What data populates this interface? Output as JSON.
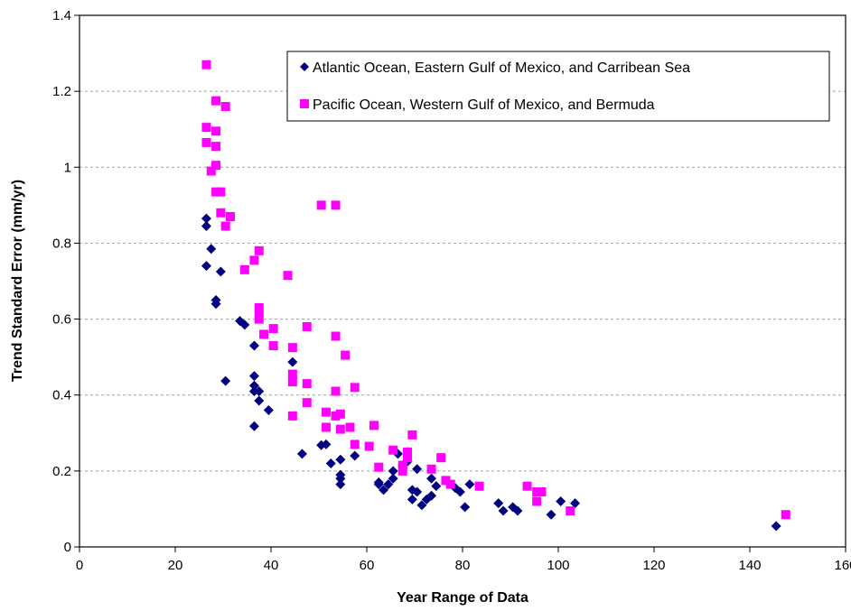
{
  "chart_data": {
    "type": "scatter",
    "title": "",
    "xlabel": "Year Range of Data",
    "ylabel": "Trend Standard Error (mm/yr)",
    "xlim": [
      0,
      160
    ],
    "ylim": [
      0,
      1.4
    ],
    "xticks": [
      "0",
      "20",
      "40",
      "60",
      "80",
      "100",
      "120",
      "140",
      "160"
    ],
    "yticks": [
      "0",
      "0.2",
      "0.4",
      "0.6",
      "0.8",
      "1",
      "1.2",
      "1.4"
    ],
    "grid": "horizontal-dashed",
    "legend_position": "top-right",
    "series": [
      {
        "name": "Atlantic Ocean, Eastern Gulf of Mexico, and Carribean Sea",
        "color": "#000080",
        "marker": "diamond",
        "points": [
          [
            26.5,
            0.865
          ],
          [
            26.5,
            0.845
          ],
          [
            26.5,
            0.74
          ],
          [
            27.5,
            0.785
          ],
          [
            28.5,
            0.65
          ],
          [
            28.5,
            0.64
          ],
          [
            29.5,
            0.725
          ],
          [
            30.5,
            0.437
          ],
          [
            33.5,
            0.595
          ],
          [
            34.5,
            0.585
          ],
          [
            36.5,
            0.53
          ],
          [
            36.5,
            0.45
          ],
          [
            36.5,
            0.425
          ],
          [
            36.5,
            0.41
          ],
          [
            36.5,
            0.318
          ],
          [
            37.5,
            0.41
          ],
          [
            37.5,
            0.385
          ],
          [
            39.5,
            0.36
          ],
          [
            44.5,
            0.487
          ],
          [
            46.5,
            0.245
          ],
          [
            50.5,
            0.268
          ],
          [
            51.5,
            0.27
          ],
          [
            52.5,
            0.22
          ],
          [
            54.5,
            0.23
          ],
          [
            54.5,
            0.19
          ],
          [
            54.5,
            0.18
          ],
          [
            54.5,
            0.165
          ],
          [
            57.5,
            0.24
          ],
          [
            62.5,
            0.17
          ],
          [
            62.5,
            0.165
          ],
          [
            63.5,
            0.15
          ],
          [
            64.5,
            0.165
          ],
          [
            65.5,
            0.18
          ],
          [
            65.5,
            0.2
          ],
          [
            66.5,
            0.245
          ],
          [
            67.5,
            0.215
          ],
          [
            68.5,
            0.225
          ],
          [
            69.5,
            0.15
          ],
          [
            69.5,
            0.125
          ],
          [
            70.5,
            0.205
          ],
          [
            70.5,
            0.145
          ],
          [
            71.5,
            0.11
          ],
          [
            72.5,
            0.125
          ],
          [
            73.5,
            0.135
          ],
          [
            73.5,
            0.18
          ],
          [
            74.5,
            0.16
          ],
          [
            78.5,
            0.155
          ],
          [
            79.5,
            0.145
          ],
          [
            80.5,
            0.105
          ],
          [
            81.5,
            0.165
          ],
          [
            87.5,
            0.115
          ],
          [
            88.5,
            0.095
          ],
          [
            90.5,
            0.105
          ],
          [
            91.5,
            0.095
          ],
          [
            98.5,
            0.085
          ],
          [
            100.5,
            0.12
          ],
          [
            103.5,
            0.115
          ],
          [
            145.5,
            0.055
          ]
        ]
      },
      {
        "name": "Pacific Ocean, Western Gulf of Mexico, and Bermuda",
        "color": "#ff00ff",
        "marker": "square",
        "points": [
          [
            26.5,
            1.27
          ],
          [
            26.5,
            1.105
          ],
          [
            26.5,
            1.065
          ],
          [
            27.5,
            0.99
          ],
          [
            28.5,
            1.175
          ],
          [
            28.5,
            1.095
          ],
          [
            28.5,
            1.055
          ],
          [
            28.5,
            1.005
          ],
          [
            28.5,
            0.935
          ],
          [
            29.5,
            0.935
          ],
          [
            29.5,
            0.88
          ],
          [
            30.5,
            1.16
          ],
          [
            30.5,
            0.845
          ],
          [
            31.5,
            0.87
          ],
          [
            34.5,
            0.73
          ],
          [
            36.5,
            0.755
          ],
          [
            37.5,
            0.78
          ],
          [
            37.5,
            0.63
          ],
          [
            37.5,
            0.615
          ],
          [
            37.5,
            0.6
          ],
          [
            38.5,
            0.56
          ],
          [
            40.5,
            0.575
          ],
          [
            40.5,
            0.53
          ],
          [
            43.5,
            0.715
          ],
          [
            44.5,
            0.525
          ],
          [
            44.5,
            0.455
          ],
          [
            44.5,
            0.435
          ],
          [
            44.5,
            0.345
          ],
          [
            47.5,
            0.58
          ],
          [
            47.5,
            0.43
          ],
          [
            47.5,
            0.38
          ],
          [
            50.5,
            0.9
          ],
          [
            51.5,
            0.355
          ],
          [
            51.5,
            0.315
          ],
          [
            53.5,
            0.9
          ],
          [
            53.5,
            0.555
          ],
          [
            53.5,
            0.41
          ],
          [
            53.5,
            0.345
          ],
          [
            54.5,
            0.35
          ],
          [
            54.5,
            0.31
          ],
          [
            55.5,
            0.505
          ],
          [
            56.5,
            0.315
          ],
          [
            57.5,
            0.42
          ],
          [
            57.5,
            0.27
          ],
          [
            60.5,
            0.265
          ],
          [
            61.5,
            0.32
          ],
          [
            62.5,
            0.21
          ],
          [
            65.5,
            0.255
          ],
          [
            67.5,
            0.215
          ],
          [
            67.5,
            0.2
          ],
          [
            68.5,
            0.25
          ],
          [
            68.5,
            0.235
          ],
          [
            69.5,
            0.295
          ],
          [
            73.5,
            0.205
          ],
          [
            75.5,
            0.235
          ],
          [
            76.5,
            0.175
          ],
          [
            77.5,
            0.165
          ],
          [
            83.5,
            0.16
          ],
          [
            93.5,
            0.16
          ],
          [
            95.5,
            0.145
          ],
          [
            95.5,
            0.12
          ],
          [
            96.5,
            0.145
          ],
          [
            102.5,
            0.095
          ],
          [
            147.5,
            0.085
          ]
        ]
      }
    ]
  }
}
